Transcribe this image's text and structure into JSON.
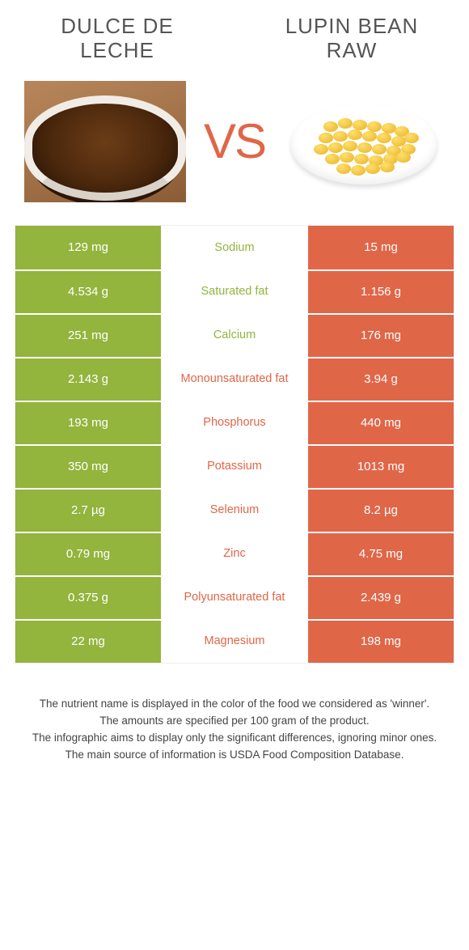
{
  "food_a": {
    "name": "DULCE DE LECHE",
    "color": "#93b43d"
  },
  "food_b": {
    "name": "LUPIN BEAN RAW",
    "color": "#e06648"
  },
  "vs_label": "VS",
  "rows": [
    {
      "nutrient": "Sodium",
      "a": "129 mg",
      "b": "15 mg",
      "winner": "a"
    },
    {
      "nutrient": "Saturated fat",
      "a": "4.534 g",
      "b": "1.156 g",
      "winner": "a"
    },
    {
      "nutrient": "Calcium",
      "a": "251 mg",
      "b": "176 mg",
      "winner": "a"
    },
    {
      "nutrient": "Monounsaturated fat",
      "a": "2.143 g",
      "b": "3.94 g",
      "winner": "b"
    },
    {
      "nutrient": "Phosphorus",
      "a": "193 mg",
      "b": "440 mg",
      "winner": "b"
    },
    {
      "nutrient": "Potassium",
      "a": "350 mg",
      "b": "1013 mg",
      "winner": "b"
    },
    {
      "nutrient": "Selenium",
      "a": "2.7 µg",
      "b": "8.2 µg",
      "winner": "b"
    },
    {
      "nutrient": "Zinc",
      "a": "0.79 mg",
      "b": "4.75 mg",
      "winner": "b"
    },
    {
      "nutrient": "Polyunsaturated fat",
      "a": "0.375 g",
      "b": "2.439 g",
      "winner": "b"
    },
    {
      "nutrient": "Magnesium",
      "a": "22 mg",
      "b": "198 mg",
      "winner": "b"
    }
  ],
  "footer": {
    "line1": "The nutrient name is displayed in the color of the food we considered as 'winner'.",
    "line2": "The amounts are specified per 100 gram of the product.",
    "line3": "The infographic aims to display only the significant differences, ignoring minor ones.",
    "line4": "The main source of information is USDA Food Composition Database."
  }
}
